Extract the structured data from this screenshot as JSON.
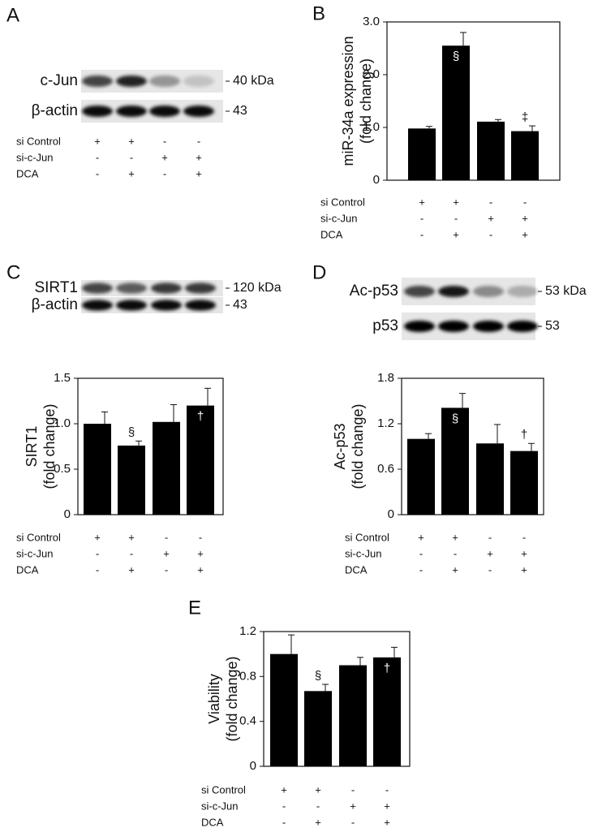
{
  "blots": [
    {
      "panel": "A",
      "bands": [
        {
          "label": "c-Jun",
          "size": "40 kDa"
        },
        {
          "label": "β-actin",
          "size": "43"
        }
      ],
      "treatments": {
        "rows": [
          "si Control",
          "si-c-Jun",
          "DCA"
        ],
        "signs": [
          [
            "+",
            "+",
            "-",
            "-"
          ],
          [
            "-",
            "-",
            "+",
            "+"
          ],
          [
            "-",
            "+",
            "-",
            "+"
          ]
        ]
      }
    },
    {
      "panel": "C",
      "bands": [
        {
          "label": "SIRT1",
          "size": "120 kDa"
        },
        {
          "label": "β-actin",
          "size": "43"
        }
      ]
    },
    {
      "panel": "D",
      "bands": [
        {
          "label": "Ac-p53",
          "size": "53 kDa"
        },
        {
          "label": "p53",
          "size": "53"
        }
      ]
    }
  ],
  "chart_data": [
    {
      "type": "bar",
      "panel": "B",
      "ylabel": [
        "miR-34a expression",
        "(fold change)"
      ],
      "color": "#000000",
      "values": [
        0.98,
        2.55,
        1.11,
        0.93
      ],
      "errors": [
        0.04,
        0.25,
        0.04,
        0.1
      ],
      "markers": [
        null,
        "§",
        null,
        "‡"
      ],
      "ylim": [
        0,
        3
      ],
      "yticks": [
        0,
        {
          "value": 1,
          "label": "1.0"
        },
        {
          "value": 2,
          "label": "2.0"
        },
        {
          "value": 3,
          "label": "3.0"
        }
      ],
      "treatments": {
        "rows": [
          "si Control",
          "si-c-Jun",
          "DCA"
        ],
        "signs": [
          [
            "+",
            "+",
            "-",
            "-"
          ],
          [
            "-",
            "-",
            "+",
            "+"
          ],
          [
            "-",
            "+",
            "-",
            "+"
          ]
        ]
      }
    },
    {
      "type": "bar",
      "ylabel": [
        "SIRT1",
        "(fold change)"
      ],
      "color": "#000000",
      "values": [
        1.0,
        0.76,
        1.02,
        1.2
      ],
      "errors": [
        0.13,
        0.05,
        0.19,
        0.19
      ],
      "markers": [
        null,
        "§",
        null,
        "†"
      ],
      "ylim": [
        0,
        1.5
      ],
      "yticks": [
        0,
        0.5,
        {
          "value": 1,
          "label": "1.0"
        },
        1.5
      ],
      "treatments": {
        "rows": [
          "si Control",
          "si-c-Jun",
          "DCA"
        ],
        "signs": [
          [
            "+",
            "+",
            "-",
            "-"
          ],
          [
            "-",
            "-",
            "+",
            "+"
          ],
          [
            "-",
            "+",
            "-",
            "+"
          ]
        ]
      }
    },
    {
      "type": "bar",
      "ylabel": [
        "Ac-p53",
        "(fold change)"
      ],
      "color": "#000000",
      "values": [
        1.0,
        1.41,
        0.94,
        0.84
      ],
      "errors": [
        0.07,
        0.19,
        0.25,
        0.1
      ],
      "markers": [
        null,
        "§",
        null,
        "†"
      ],
      "ylim": [
        0,
        1.8
      ],
      "yticks": [
        0,
        0.6,
        1.2,
        1.8
      ],
      "treatments": {
        "rows": [
          "si Control",
          "si-c-Jun",
          "DCA"
        ],
        "signs": [
          [
            "+",
            "+",
            "-",
            "-"
          ],
          [
            "-",
            "-",
            "+",
            "+"
          ],
          [
            "-",
            "+",
            "-",
            "+"
          ]
        ]
      }
    },
    {
      "type": "bar",
      "panel": "E",
      "ylabel": [
        "Viability",
        "(fold change)"
      ],
      "color": "#000000",
      "values": [
        1.0,
        0.67,
        0.9,
        0.97
      ],
      "errors": [
        0.17,
        0.06,
        0.07,
        0.09
      ],
      "markers": [
        null,
        "§",
        null,
        "†"
      ],
      "ylim": [
        0,
        1.2
      ],
      "yticks": [
        0,
        0.4,
        0.8,
        1.2
      ],
      "treatments": {
        "rows": [
          "si Control",
          "si-c-Jun",
          "DCA"
        ],
        "signs": [
          [
            "+",
            "+",
            "-",
            "-"
          ],
          [
            "-",
            "-",
            "+",
            "+"
          ],
          [
            "-",
            "+",
            "-",
            "+"
          ]
        ]
      }
    }
  ]
}
